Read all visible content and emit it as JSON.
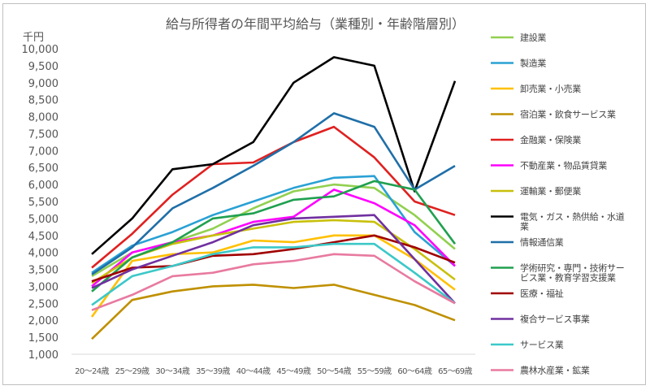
{
  "chart_data": {
    "type": "line",
    "title": "給与所得者の年間平均給与（業種別・年齢階層別）",
    "y_unit": "千円",
    "ylim": [
      1000,
      10000
    ],
    "ytick_step": 500,
    "grid": false,
    "legend_position": "right",
    "categories": [
      "20～24歳",
      "25～29歳",
      "30～34歳",
      "35～39歳",
      "40～44歳",
      "45～49歳",
      "50～54歳",
      "55～59歳",
      "60～64歳",
      "65～69歳"
    ],
    "series": [
      {
        "name": "建設業",
        "color": "#92d050",
        "values": [
          3300,
          4000,
          4300,
          4700,
          5300,
          5800,
          6000,
          5900,
          5100,
          4100
        ]
      },
      {
        "name": "製造業",
        "color": "#2aa1d4",
        "values": [
          3400,
          4200,
          4600,
          5100,
          5500,
          5900,
          6200,
          6250,
          4600,
          3600
        ]
      },
      {
        "name": "卸売業・小売業",
        "color": "#ffc000",
        "values": [
          2100,
          3750,
          3950,
          4000,
          4350,
          4300,
          4500,
          4500,
          3800,
          2900
        ]
      },
      {
        "name": "宿泊業・飲食サービス業",
        "color": "#bf9000",
        "values": [
          1450,
          2600,
          2850,
          3000,
          3050,
          2950,
          3050,
          2750,
          2450,
          2000
        ]
      },
      {
        "name": "金融業・保険業",
        "color": "#e02020",
        "values": [
          3550,
          4550,
          5700,
          6600,
          6650,
          7250,
          7700,
          6800,
          5500,
          5100
        ]
      },
      {
        "name": "不動産業・物品賃貸業",
        "color": "#ff00ff",
        "values": [
          3000,
          4000,
          4300,
          4500,
          4900,
          5050,
          5850,
          5450,
          4800,
          3600
        ]
      },
      {
        "name": "運輸業・郵便業",
        "color": "#c8c00a",
        "values": [
          3100,
          3850,
          4250,
          4500,
          4700,
          4900,
          4950,
          4900,
          4100,
          3200
        ]
      },
      {
        "name": "電気・ガス・熱供給・水道業",
        "color": "#000000",
        "values": [
          3950,
          5000,
          6450,
          6600,
          7250,
          9000,
          9750,
          9500,
          5800,
          9050
        ]
      },
      {
        "name": "情報通信業",
        "color": "#1f6fa8",
        "values": [
          3350,
          4150,
          5300,
          5900,
          6550,
          7250,
          8100,
          7700,
          5850,
          6550
        ]
      },
      {
        "name": "学術研究・専門・技術サービス業・教育学習支援業",
        "color": "#20a050",
        "values": [
          2850,
          3850,
          4300,
          5000,
          5150,
          5550,
          5650,
          6100,
          5850,
          4250
        ]
      },
      {
        "name": "医療・福祉",
        "color": "#a00000",
        "values": [
          3150,
          3550,
          3600,
          3900,
          3950,
          4100,
          4300,
          4500,
          4150,
          3700
        ]
      },
      {
        "name": "複合サービス事業",
        "color": "#7030a0",
        "values": [
          2950,
          3500,
          3900,
          4300,
          4800,
          5000,
          5050,
          5100,
          3800,
          2500
        ]
      },
      {
        "name": "サービス業",
        "color": "#3cc8c8",
        "values": [
          2450,
          3300,
          3600,
          3950,
          4150,
          4150,
          4250,
          4250,
          3400,
          2500
        ]
      },
      {
        "name": "農林水産業・鉱業",
        "color": "#e87aa0",
        "values": [
          2300,
          2750,
          3300,
          3400,
          3650,
          3750,
          3950,
          3900,
          3150,
          2500
        ]
      }
    ]
  }
}
